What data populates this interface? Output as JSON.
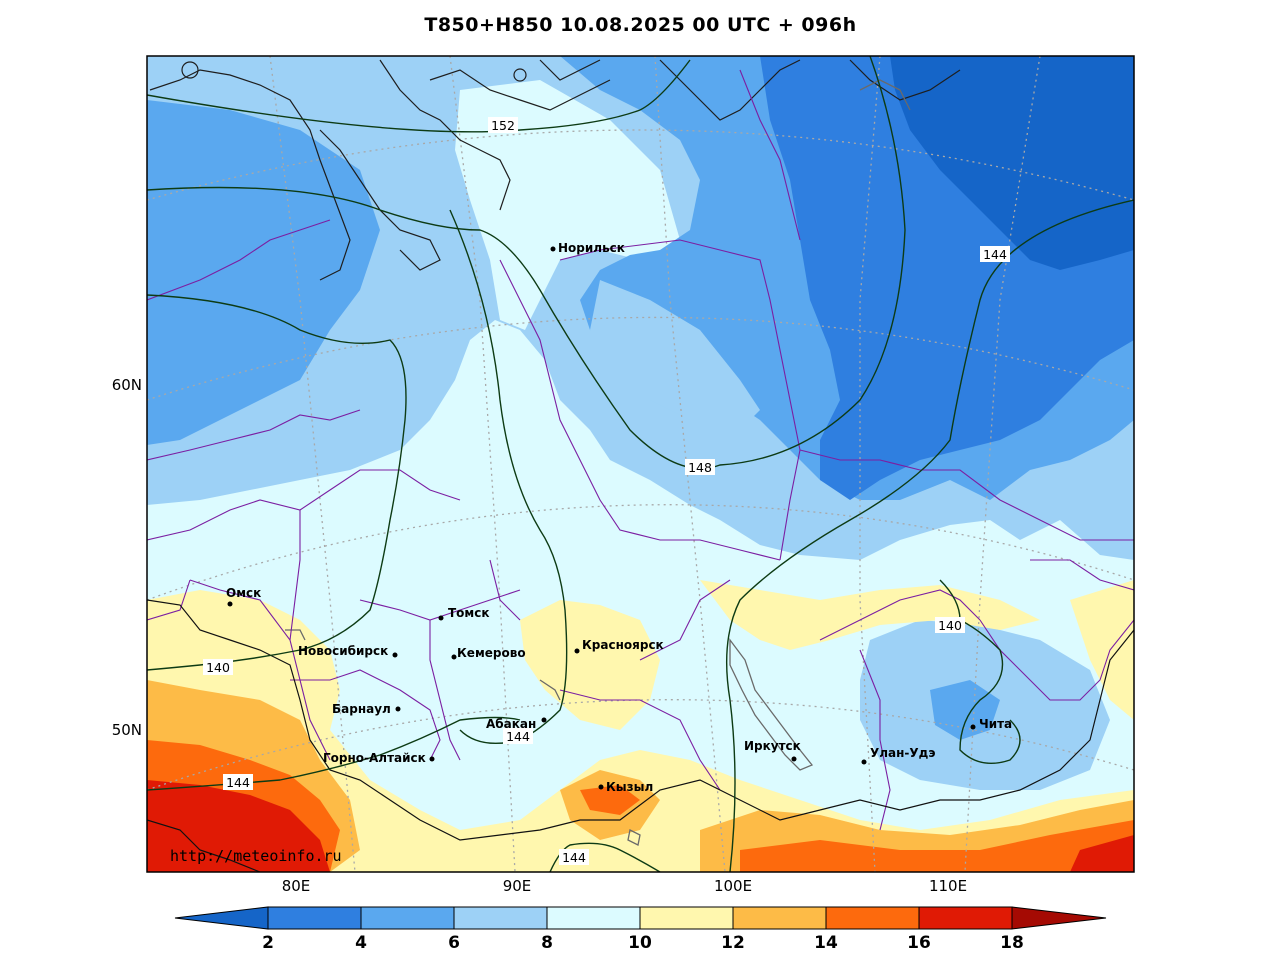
{
  "title": "T850+H850 10.08.2025 00 UTC + 096h",
  "source_url": "http://meteoinfo.ru",
  "axes": {
    "lat_labels": [
      "60N",
      "50N"
    ],
    "lon_labels": [
      "80E",
      "90E",
      "100E",
      "110E"
    ]
  },
  "cities": [
    {
      "id": "norilsk",
      "name": "Норильск"
    },
    {
      "id": "omsk",
      "name": "Омск"
    },
    {
      "id": "tomsk",
      "name": "Томск"
    },
    {
      "id": "novosibirsk",
      "name": "Новосибирск"
    },
    {
      "id": "kemerovo",
      "name": "Кемерово"
    },
    {
      "id": "krasnoyarsk",
      "name": "Красноярск"
    },
    {
      "id": "barnaul",
      "name": "Барнаул"
    },
    {
      "id": "abakan",
      "name": "Абакан"
    },
    {
      "id": "gorno",
      "name": "Горно-Алтайск"
    },
    {
      "id": "kyzyl",
      "name": "Кызыл"
    },
    {
      "id": "irkutsk",
      "name": "Иркутск"
    },
    {
      "id": "ulanude",
      "name": "Улан-Удэ"
    },
    {
      "id": "chita",
      "name": "Чита"
    }
  ],
  "contour_labels": [
    "152",
    "144",
    "148",
    "140",
    "140",
    "144",
    "144",
    "144"
  ],
  "colorbar": {
    "ticks": [
      "2",
      "4",
      "6",
      "8",
      "10",
      "12",
      "14",
      "16",
      "18"
    ],
    "colors": [
      "#1565c8",
      "#2f7fe0",
      "#5aa8ef",
      "#9dd1f6",
      "#dcfbff",
      "#fff7ae",
      "#fdbb47",
      "#fd6a0d",
      "#e01a05",
      "#a50a03"
    ]
  }
}
